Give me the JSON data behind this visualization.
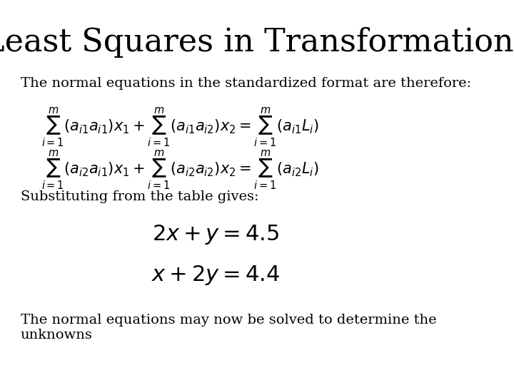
{
  "title": "Least Squares in Transformations",
  "title_fontsize": 32,
  "title_fontstyle": "normal",
  "bg_color": "#ffffff",
  "text_color": "#000000",
  "line1": "The normal equations in the standardized format are therefore:",
  "line1_fontsize": 14,
  "eq1": "\\sum_{i=1}^{m}(a_{i1}a_{i1})x_1 + \\sum_{i=1}^{m}(a_{i1}a_{i2})x_2 = \\sum_{i=1}^{m}(a_{i1}L_i)",
  "eq2": "\\sum_{i=1}^{m}(a_{i2}a_{i1})x_1 + \\sum_{i=1}^{m}(a_{i2}a_{i2})x_2 = \\sum_{i=1}^{m}(a_{i2}L_i)",
  "line2": "Substituting from the table gives:",
  "line2_fontsize": 14,
  "eq3": "2x + y = 4.5",
  "eq4": "x + 2y = 4.4",
  "eq_fontsize": 18,
  "line3": "The normal equations may now be solved to determine the\nunknowns",
  "line3_fontsize": 14,
  "figwidth": 7.2,
  "figheight": 5.4,
  "dpi": 100
}
